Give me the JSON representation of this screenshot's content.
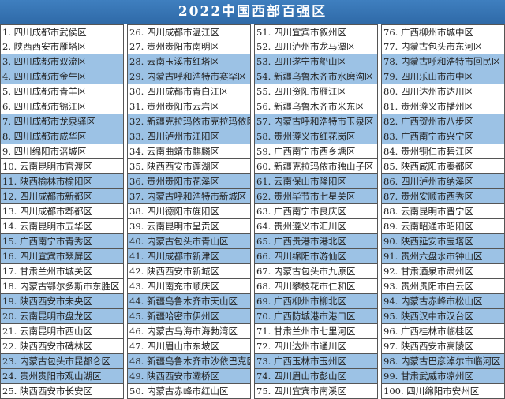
{
  "title": "2022中国西部百强区",
  "colors": {
    "header": "#2f6aa8",
    "highlight_row": "#9cc2e5"
  },
  "items": [
    "1. 四川成都市武侯区",
    "2. 陕西西安市雁塔区",
    "3. 四川成都市双流区",
    "4. 四川成都市金牛区",
    "5. 四川成都市青羊区",
    "6. 四川成都市锦江区",
    "7. 四川成都市龙泉驿区",
    "8. 四川成都市成华区",
    "9. 四川绵阳市涪城区",
    "10. 云南昆明市官渡区",
    "11. 陕西榆林市榆阳区",
    "12. 四川成都市新都区",
    "13. 四川成都市郫都区",
    "14. 云南昆明市五华区",
    "15. 广西南宁市青秀区",
    "16. 四川宜宾市翠屏区",
    "17. 甘肃兰州市城关区",
    "18. 内蒙古鄂尔多斯市东胜区",
    "19. 陕西西安市未央区",
    "20. 云南昆明市盘龙区",
    "21. 云南昆明市西山区",
    "22. 陕西西安市碑林区",
    "23. 内蒙古包头市昆都仑区",
    "24. 贵州贵阳市观山湖区",
    "25. 陕西西安市长安区",
    "26. 四川成都市温江区",
    "27. 贵州贵阳市南明区",
    "28. 云南玉溪市红塔区",
    "29. 内蒙古呼和浩特市赛罕区",
    "30. 四川成都市青白江区",
    "31. 贵州贵阳市云岩区",
    "32. 新疆克拉玛依市克拉玛依区",
    "33. 四川泸州市江阳区",
    "34. 云南曲靖市麒麟区",
    "35. 陕西西安市莲湖区",
    "36. 贵州贵阳市花溪区",
    "37. 内蒙古呼和浩特市新城区",
    "38. 四川德阳市旌阳区",
    "39. 云南昆明市呈贡区",
    "40. 内蒙古包头市青山区",
    "41. 四川成都市新津区",
    "42. 陕西西安市新城区",
    "43. 四川南充市顺庆区",
    "44. 新疆乌鲁木齐市天山区",
    "45. 新疆哈密市伊州区",
    "46. 内蒙古乌海市海勃湾区",
    "47. 四川眉山市东坡区",
    "48. 新疆乌鲁木齐市沙依巴克区",
    "49. 陕西西安市灞桥区",
    "50. 内蒙古赤峰市红山区",
    "51. 四川宜宾市叙州区",
    "52. 四川泸州市龙马潭区",
    "53. 四川遂宁市船山区",
    "54. 新疆乌鲁木齐市水磨沟区",
    "55. 四川资阳市雁江区",
    "56. 新疆乌鲁木齐市米东区",
    "57. 内蒙古呼和浩特市玉泉区",
    "58. 贵州遵义市红花岗区",
    "59. 广西南宁市西乡塘区",
    "60. 新疆克拉玛依市独山子区",
    "61. 云南保山市隆阳区",
    "62. 贵州毕节市七星关区",
    "63. 广西南宁市良庆区",
    "64. 贵州遵义市汇川区",
    "65. 广西贵港市港北区",
    "66. 四川绵阳市游仙区",
    "67. 内蒙古包头市九原区",
    "68. 四川攀枝花市仁和区",
    "69. 广西柳州市柳北区",
    "70. 广西防城港市港口区",
    "71. 甘肃兰州市七里河区",
    "72. 四川达州市通川区",
    "73. 广西玉林市玉州区",
    "74. 四川眉山市彭山区",
    "75. 四川宜宾市南溪区",
    "76. 广西柳州市城中区",
    "77. 内蒙古包头市东河区",
    "78. 内蒙古呼和浩特市回民区",
    "79. 四川乐山市市中区",
    "80. 四川达州市达川区",
    "81. 贵州遵义市播州区",
    "82. 广西贺州市八步区",
    "83. 广西南宁市兴宁区",
    "84. 贵州铜仁市碧江区",
    "85. 陕西咸阳市秦都区",
    "86. 四川泸州市纳溪区",
    "87. 贵州安顺市西秀区",
    "88. 云南昆明市晋宁区",
    "89. 云南昭通市昭阳区",
    "90. 陕西延安市宝塔区",
    "91. 贵州六盘水市钟山区",
    "92. 甘肃酒泉市肃州区",
    "93. 贵州贵阳市白云区",
    "94. 内蒙古赤峰市松山区",
    "95. 陕西汉中市汉台区",
    "96. 广西桂林市临桂区",
    "97. 陕西西安市高陵区",
    "98. 内蒙古巴彦淖尔市临河区",
    "99. 甘肃武威市凉州区",
    "100. 四川绵阳市安州区"
  ]
}
